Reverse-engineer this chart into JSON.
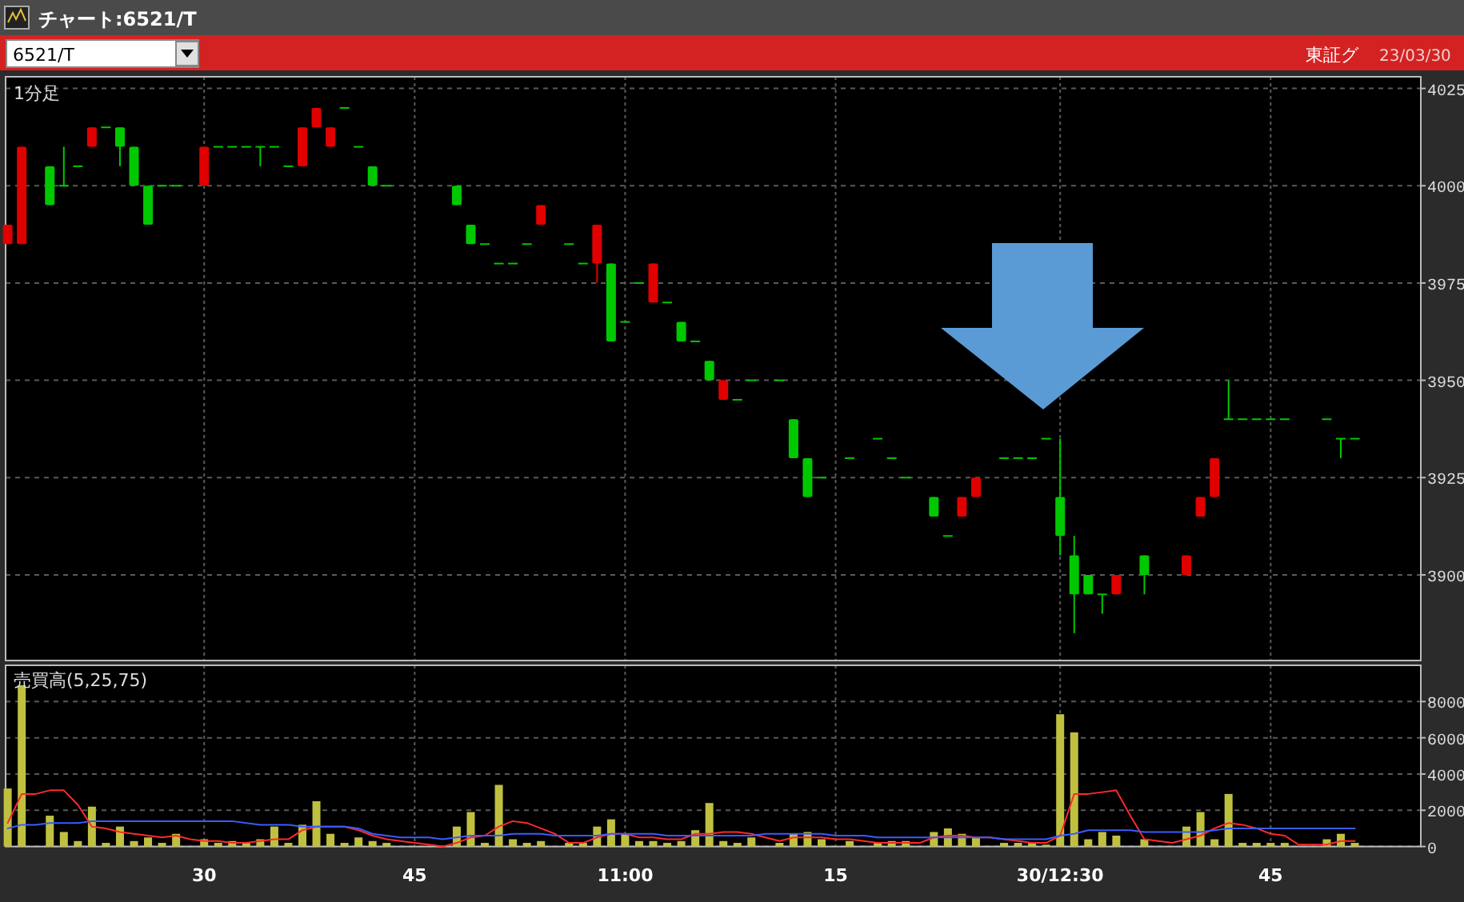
{
  "chart_data": [
    {
      "type": "candlestick",
      "title": "チャート:6521/T",
      "annotations": [
        "6521/T",
        "東証グ",
        "23/03/30",
        "1分足"
      ],
      "categories": [
        null,
        null,
        null,
        null,
        null,
        null,
        null,
        null,
        null,
        null,
        null,
        null,
        null,
        null,
        null,
        null,
        null,
        null,
        null,
        null,
        null,
        null,
        null,
        null,
        null,
        null,
        null,
        null,
        null,
        null,
        null,
        null,
        null,
        null,
        null,
        null,
        null,
        null,
        null,
        null,
        null,
        null,
        null,
        null,
        null,
        null,
        null,
        null,
        null,
        null,
        null,
        null,
        null,
        null,
        null,
        null,
        null,
        null,
        null,
        null,
        null,
        null,
        null,
        null,
        null,
        null,
        null,
        null,
        null,
        null,
        null,
        null,
        null,
        null,
        null,
        null,
        null,
        null,
        null,
        null,
        null,
        null,
        null,
        null,
        null,
        null,
        null,
        null,
        null,
        null,
        null,
        null,
        null,
        null,
        null,
        null,
        null,
        null,
        null,
        null,
        null
      ],
      "ohlc": [
        [
          3985,
          3990,
          3985,
          3990
        ],
        [
          3985,
          4010,
          3985,
          4010
        ],
        null,
        [
          4005,
          4005,
          3995,
          3995
        ],
        [
          4000,
          4010,
          4000,
          4000
        ],
        [
          4005,
          4005,
          4005,
          4005
        ],
        [
          4010,
          4015,
          4010,
          4015
        ],
        [
          4015,
          4015,
          4015,
          4015
        ],
        [
          4015,
          4015,
          4005,
          4010
        ],
        [
          4010,
          4010,
          4000,
          4000
        ],
        [
          4000,
          4000,
          3990,
          3990
        ],
        [
          4000,
          4000,
          4000,
          4000
        ],
        [
          4000,
          4000,
          4000,
          4000
        ],
        null,
        [
          4000,
          4010,
          4000,
          4010
        ],
        [
          4010,
          4010,
          4010,
          4010
        ],
        [
          4010,
          4010,
          4010,
          4010
        ],
        [
          4010,
          4010,
          4010,
          4010
        ],
        [
          4010,
          4010,
          4005,
          4010
        ],
        [
          4010,
          4010,
          4010,
          4010
        ],
        [
          4005,
          4005,
          4005,
          4005
        ],
        [
          4005,
          4015,
          4005,
          4015
        ],
        [
          4015,
          4020,
          4015,
          4020
        ],
        [
          4010,
          4015,
          4010,
          4015
        ],
        [
          4020,
          4020,
          4020,
          4020
        ],
        [
          4010,
          4010,
          4010,
          4010
        ],
        [
          4005,
          4005,
          4000,
          4000
        ],
        [
          4000,
          4000,
          4000,
          4000
        ],
        null,
        null,
        null,
        null,
        [
          4000,
          4000,
          3995,
          3995
        ],
        [
          3990,
          3990,
          3985,
          3985
        ],
        [
          3985,
          3985,
          3985,
          3985
        ],
        [
          3980,
          3980,
          3980,
          3980
        ],
        [
          3980,
          3980,
          3980,
          3980
        ],
        [
          3985,
          3985,
          3985,
          3985
        ],
        [
          3990,
          3995,
          3990,
          3995
        ],
        null,
        [
          3985,
          3985,
          3985,
          3985
        ],
        [
          3980,
          3980,
          3980,
          3980
        ],
        [
          3980,
          3990,
          3975,
          3990
        ],
        [
          3980,
          3980,
          3960,
          3960
        ],
        [
          3965,
          3965,
          3965,
          3965
        ],
        [
          3975,
          3975,
          3975,
          3975
        ],
        [
          3970,
          3980,
          3970,
          3980
        ],
        [
          3970,
          3970,
          3970,
          3970
        ],
        [
          3965,
          3965,
          3960,
          3960
        ],
        [
          3960,
          3960,
          3960,
          3960
        ],
        [
          3955,
          3955,
          3950,
          3950
        ],
        [
          3945,
          3950,
          3945,
          3950
        ],
        [
          3945,
          3945,
          3945,
          3945
        ],
        [
          3950,
          3950,
          3950,
          3950
        ],
        null,
        [
          3950,
          3950,
          3950,
          3950
        ],
        [
          3940,
          3940,
          3930,
          3930
        ],
        [
          3930,
          3930,
          3920,
          3920
        ],
        [
          3925,
          3925,
          3925,
          3925
        ],
        null,
        [
          3930,
          3930,
          3930,
          3930
        ],
        null,
        [
          3935,
          3935,
          3935,
          3935
        ],
        [
          3930,
          3930,
          3930,
          3930
        ],
        [
          3925,
          3925,
          3925,
          3925
        ],
        null,
        [
          3920,
          3920,
          3915,
          3915
        ],
        [
          3910,
          3910,
          3910,
          3910
        ],
        [
          3915,
          3920,
          3915,
          3920
        ],
        [
          3920,
          3925,
          3920,
          3925
        ],
        null,
        [
          3930,
          3930,
          3930,
          3930
        ],
        [
          3930,
          3930,
          3930,
          3930
        ],
        [
          3930,
          3930,
          3930,
          3930
        ],
        [
          3935,
          3935,
          3935,
          3935
        ],
        [
          3920,
          3935,
          3905,
          3910
        ],
        [
          3905,
          3910,
          3885,
          3895
        ],
        [
          3900,
          3900,
          3895,
          3895
        ],
        [
          3895,
          3895,
          3890,
          3895
        ],
        [
          3895,
          3900,
          3895,
          3900
        ],
        null,
        [
          3905,
          3905,
          3895,
          3900
        ],
        null,
        null,
        [
          3900,
          3905,
          3900,
          3905
        ],
        [
          3915,
          3920,
          3915,
          3920
        ],
        [
          3920,
          3930,
          3920,
          3930
        ],
        [
          3940,
          3950,
          3940,
          3940
        ],
        [
          3940,
          3940,
          3940,
          3940
        ],
        [
          3940,
          3940,
          3940,
          3940
        ],
        [
          3940,
          3940,
          3940,
          3940
        ],
        [
          3940,
          3940,
          3940,
          3940
        ],
        null,
        null,
        [
          3940,
          3940,
          3940,
          3940
        ],
        [
          3935,
          3935,
          3930,
          3935
        ],
        [
          3935,
          3935,
          3935,
          3935
        ],
        null,
        null,
        null,
        null
      ],
      "colors": [
        "#e00000",
        "#e00000",
        null,
        "#00c800",
        "#00c800",
        "#00c800",
        "#e00000",
        "#00c800",
        "#00c800",
        "#00c800",
        "#00c800",
        "#00c800",
        "#00c800",
        null,
        "#e00000",
        "#00c800",
        "#00c800",
        "#00c800",
        "#00c800",
        "#00c800",
        "#00c800",
        "#e00000",
        "#e00000",
        "#e00000",
        "#00c800",
        "#00c800",
        "#00c800",
        "#00c800",
        null,
        null,
        null,
        null,
        "#00c800",
        "#00c800",
        "#00c800",
        "#00c800",
        "#00c800",
        "#00c800",
        "#e00000",
        null,
        "#00c800",
        "#00c800",
        "#e00000",
        "#00c800",
        "#00c800",
        "#00c800",
        "#e00000",
        "#00c800",
        "#00c800",
        "#00c800",
        "#00c800",
        "#e00000",
        "#00c800",
        "#00c800",
        null,
        "#00c800",
        "#00c800",
        "#00c800",
        "#00c800",
        null,
        "#00c800",
        null,
        "#00c800",
        "#00c800",
        "#00c800",
        null,
        "#00c800",
        "#00c800",
        "#e00000",
        "#e00000",
        null,
        "#00c800",
        "#00c800",
        "#00c800",
        "#00c800",
        "#00c800",
        "#00c800",
        "#00c800",
        "#00c800",
        "#e00000",
        null,
        "#00c800",
        null,
        null,
        "#e00000",
        "#e00000",
        "#e00000",
        "#00c800",
        "#00c800",
        "#00c800",
        "#00c800",
        "#00c800",
        null,
        null,
        "#00c800",
        "#00c800",
        "#00c800",
        null,
        null,
        null,
        null
      ],
      "ylim": [
        3878,
        4028
      ],
      "yticks": [
        3900,
        3925,
        3950,
        3975,
        4000,
        4025
      ],
      "grid": true,
      "tick_labels": "y"
    },
    {
      "type": "bar",
      "title": "売買高(5,25,75)",
      "categories": [
        null,
        null,
        null,
        null,
        null,
        null,
        null,
        null,
        null,
        null,
        null,
        null,
        null,
        null,
        "30",
        null,
        null,
        null,
        null,
        null,
        null,
        null,
        null,
        null,
        null,
        null,
        null,
        null,
        null,
        "45",
        null,
        null,
        null,
        null,
        null,
        null,
        null,
        null,
        null,
        null,
        null,
        null,
        null,
        null,
        "11:00",
        null,
        null,
        null,
        null,
        null,
        null,
        null,
        null,
        null,
        null,
        null,
        null,
        null,
        null,
        "15",
        null,
        null,
        null,
        null,
        null,
        null,
        null,
        null,
        null,
        null,
        null,
        null,
        null,
        null,
        null,
        "30/12:30",
        null,
        null,
        null,
        null,
        null,
        null,
        null,
        null,
        null,
        null,
        null,
        null,
        null,
        null,
        "45",
        null,
        null,
        null,
        null,
        null,
        null,
        null,
        null,
        null,
        null
      ],
      "series": [
        {
          "type": "bar",
          "color": "#c0c040",
          "values": [
            3200,
            8900,
            null,
            1700,
            800,
            300,
            2200,
            200,
            1100,
            300,
            500,
            200,
            700,
            null,
            400,
            200,
            300,
            200,
            400,
            1100,
            200,
            1200,
            2500,
            700,
            200,
            500,
            300,
            200,
            null,
            null,
            null,
            null,
            1100,
            1900,
            200,
            3400,
            400,
            200,
            300,
            null,
            200,
            200,
            1100,
            1500,
            700,
            300,
            300,
            200,
            300,
            900,
            2400,
            300,
            200,
            500,
            null,
            200,
            700,
            800,
            400,
            null,
            300,
            null,
            200,
            300,
            300,
            null,
            800,
            1000,
            700,
            500,
            null,
            200,
            200,
            200,
            100,
            7300,
            6300,
            400,
            800,
            600,
            null,
            400,
            null,
            null,
            1100,
            1900,
            400,
            2900,
            200,
            200,
            200,
            200,
            null,
            null,
            400,
            700,
            200,
            null,
            null,
            null,
            null
          ]
        },
        {
          "type": "line",
          "color": "#ff2a2a",
          "values": [
            1300,
            2900,
            2900,
            3100,
            3100,
            2300,
            1100,
            1000,
            800,
            700,
            600,
            500,
            600,
            400,
            300,
            300,
            200,
            200,
            300,
            400,
            400,
            900,
            1100,
            1100,
            1100,
            900,
            600,
            400,
            300,
            200,
            100,
            0,
            200,
            500,
            600,
            1100,
            1400,
            1300,
            1000,
            700,
            200,
            200,
            500,
            700,
            700,
            500,
            500,
            400,
            400,
            700,
            700,
            800,
            800,
            700,
            500,
            300,
            500,
            500,
            500,
            400,
            400,
            300,
            200,
            200,
            200,
            200,
            500,
            600,
            600,
            500,
            500,
            400,
            300,
            200,
            200,
            600,
            2900,
            2900,
            3000,
            3100,
            1700,
            400,
            300,
            200,
            400,
            600,
            1000,
            1300,
            1200,
            1000,
            700,
            600,
            100,
            100,
            100,
            300,
            300,
            null,
            null,
            null,
            null
          ]
        },
        {
          "type": "line",
          "color": "#3a5cff",
          "values": [
            1000,
            1200,
            1200,
            1300,
            1300,
            1300,
            1400,
            1400,
            1400,
            1400,
            1400,
            1400,
            1400,
            1400,
            1400,
            1400,
            1400,
            1300,
            1200,
            1200,
            1200,
            1100,
            1100,
            1100,
            1100,
            1000,
            700,
            600,
            500,
            500,
            500,
            400,
            500,
            600,
            600,
            600,
            700,
            700,
            700,
            600,
            600,
            600,
            600,
            700,
            700,
            700,
            700,
            600,
            600,
            600,
            600,
            600,
            600,
            600,
            700,
            700,
            700,
            700,
            700,
            600,
            600,
            600,
            500,
            500,
            500,
            500,
            500,
            500,
            500,
            500,
            500,
            400,
            400,
            400,
            400,
            600,
            700,
            900,
            900,
            900,
            900,
            800,
            800,
            800,
            800,
            800,
            900,
            1000,
            1000,
            1000,
            1000,
            1000,
            1000,
            1000,
            1000,
            1000,
            1000,
            null,
            null,
            null,
            null
          ]
        }
      ],
      "ylim": [
        0,
        10000
      ],
      "yticks": [
        0,
        2000,
        4000,
        6000,
        8000
      ],
      "grid": true
    }
  ]
}
